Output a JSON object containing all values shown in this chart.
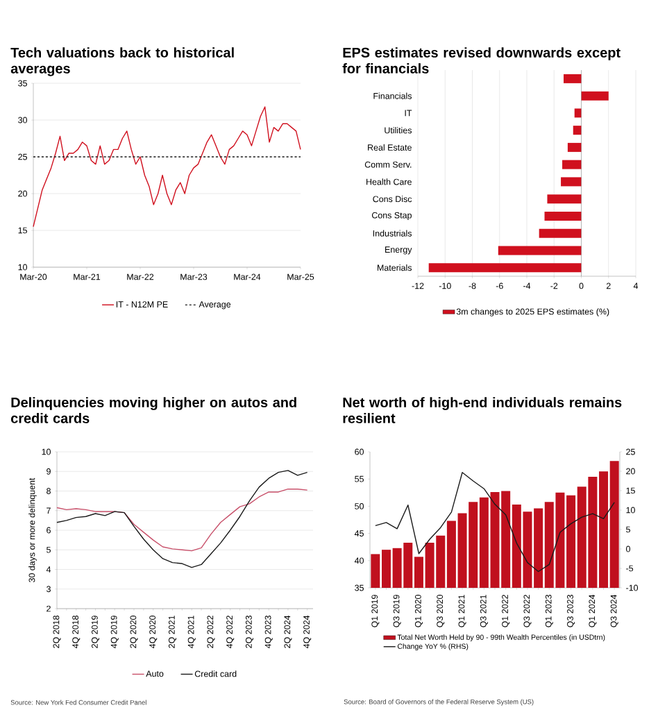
{
  "chart_data": [
    {
      "type": "line",
      "title": "Tech valuations back to historical averages",
      "x": [
        "2020-03",
        "2020-04",
        "2020-05",
        "2020-06",
        "2020-07",
        "2020-08",
        "2020-09",
        "2020-10",
        "2020-11",
        "2020-12",
        "2021-01",
        "2021-02",
        "2021-03",
        "2021-04",
        "2021-05",
        "2021-06",
        "2021-07",
        "2021-08",
        "2021-09",
        "2021-10",
        "2021-11",
        "2021-12",
        "2022-01",
        "2022-02",
        "2022-03",
        "2022-04",
        "2022-05",
        "2022-06",
        "2022-07",
        "2022-08",
        "2022-09",
        "2022-10",
        "2022-11",
        "2022-12",
        "2023-01",
        "2023-02",
        "2023-03",
        "2023-04",
        "2023-05",
        "2023-06",
        "2023-07",
        "2023-08",
        "2023-09",
        "2023-10",
        "2023-11",
        "2023-12",
        "2024-01",
        "2024-02",
        "2024-03",
        "2024-04",
        "2024-05",
        "2024-06",
        "2024-07",
        "2024-08",
        "2024-09",
        "2024-10",
        "2024-11",
        "2024-12",
        "2025-01",
        "2025-02",
        "2025-03"
      ],
      "series": [
        {
          "name": "IT - N12M PE",
          "color": "#d0101e",
          "values": [
            15.5,
            18,
            20.5,
            22,
            23.5,
            25.5,
            27.8,
            24.5,
            25.5,
            25.5,
            26,
            27,
            26.5,
            24.5,
            24,
            26.5,
            24,
            24.5,
            26,
            26,
            27.5,
            28.5,
            26,
            24,
            25,
            22.5,
            21,
            18.5,
            20,
            22.5,
            20,
            18.5,
            20.5,
            21.5,
            20,
            22.5,
            23.5,
            24,
            25.5,
            27,
            28,
            26.5,
            25,
            24,
            26,
            26.5,
            27.5,
            28.5,
            28,
            26.5,
            28.5,
            30.5,
            31.8,
            27,
            29,
            28.5,
            29.5,
            29.5,
            29,
            28.5,
            26
          ]
        }
      ],
      "ref_lines": [
        {
          "axis": "y",
          "value": 25,
          "label": "Average",
          "color": "#1a1a1a",
          "line_style": "dashed"
        }
      ],
      "xlim": [
        "2020-03",
        "2025-03"
      ],
      "xticks": [
        {
          "value": "2020-03",
          "label": "Mar-20"
        },
        {
          "value": "2021-03",
          "label": "Mar-21"
        },
        {
          "value": "2022-03",
          "label": "Mar-22"
        },
        {
          "value": "2023-03",
          "label": "Mar-23"
        },
        {
          "value": "2024-03",
          "label": "Mar-24"
        },
        {
          "value": "2025-03",
          "label": "Mar-25"
        }
      ],
      "ylim": [
        10,
        35
      ],
      "yticks": [
        10,
        15,
        20,
        25,
        30,
        35
      ],
      "grid": "y",
      "legend": "bottom"
    },
    {
      "type": "bar",
      "orientation": "horizontal",
      "title": "EPS estimates revised downwards except for financials",
      "categories": [
        null,
        "Financials",
        "IT",
        "Utilities",
        "Real Estate",
        "Comm Serv.",
        "Health Care",
        "Cons Disc",
        "Cons Stap",
        "Industrials",
        "Energy",
        "Materials"
      ],
      "series": [
        {
          "name": "3m changes to 2025 EPS estimates (%)",
          "color": "#d0101e",
          "values": [
            -1.3,
            2.0,
            -0.5,
            -0.6,
            -1.0,
            -1.4,
            -1.5,
            -2.5,
            -2.7,
            -3.1,
            -6.1,
            -11.2
          ]
        }
      ],
      "xlim": [
        -12,
        4
      ],
      "xticks": [
        -12,
        -10,
        -8,
        -6,
        -4,
        -2,
        0,
        2,
        4
      ],
      "grid": "x",
      "legend": "bottom"
    },
    {
      "type": "line",
      "title": "Delinquencies moving higher on autos and credit cards",
      "ylabel": "30 days or more delinquent",
      "categories": [
        "2Q 2018",
        null,
        "4Q 2018",
        null,
        "2Q 2019",
        null,
        "4Q 2019",
        null,
        "2Q 2020",
        null,
        "4Q 2020",
        null,
        "2Q 2021",
        null,
        "4Q 2021",
        null,
        "2Q 2022",
        null,
        "4Q 2022",
        null,
        "2Q 2023",
        null,
        "4Q 2023",
        null,
        "2Q 2024",
        null,
        "4Q 2024"
      ],
      "series": [
        {
          "name": "Auto",
          "color": "#c8506a",
          "values": [
            7.15,
            7.05,
            7.1,
            7.05,
            6.95,
            6.95,
            6.95,
            6.9,
            6.3,
            5.9,
            5.5,
            5.15,
            5.05,
            5.0,
            4.95,
            5.1,
            5.8,
            6.4,
            6.8,
            7.2,
            7.35,
            7.7,
            7.95,
            7.95,
            8.1,
            8.1,
            8.05
          ]
        },
        {
          "name": "Credit card",
          "color": "#1a1a1a",
          "values": [
            6.4,
            6.5,
            6.65,
            6.7,
            6.85,
            6.75,
            6.95,
            6.9,
            6.2,
            5.55,
            5.0,
            4.55,
            4.35,
            4.3,
            4.1,
            4.25,
            4.8,
            5.35,
            6.0,
            6.7,
            7.5,
            8.2,
            8.65,
            8.95,
            9.05,
            8.8,
            8.95
          ]
        }
      ],
      "ylim": [
        2,
        10
      ],
      "yticks": [
        2,
        3,
        4,
        5,
        6,
        7,
        8,
        9,
        10
      ],
      "grid": "y",
      "legend": "bottom",
      "annotations": [
        "Source: New York Fed Consumer Credit Panel"
      ]
    },
    {
      "type": "bar",
      "title": "Net worth of high-end individuals remains resilient",
      "categories": [
        "Q1 2019",
        null,
        "Q3 2019",
        null,
        "Q1 2020",
        null,
        "Q3 2020",
        null,
        "Q1 2021",
        null,
        "Q3 2021",
        null,
        "Q1 2022",
        null,
        "Q3 2022",
        null,
        "Q1 2023",
        null,
        "Q3 2023",
        null,
        "Q1 2024",
        null,
        "Q3 2024"
      ],
      "series": [
        {
          "name": "Total Net Worth Held by 90 - 99th Wealth Percentiles (in USDtrn)",
          "color": "#c0101e",
          "values": [
            41.2,
            42.0,
            42.3,
            43.3,
            40.7,
            43.3,
            44.6,
            47.3,
            48.7,
            50.8,
            51.6,
            52.6,
            52.8,
            50.3,
            49.0,
            49.6,
            50.8,
            52.5,
            52.0,
            53.6,
            55.4,
            56.4,
            58.3
          ]
        },
        {
          "name": "Change YoY % (RHS)",
          "type": "line",
          "axis": "y2",
          "color": "#1a1a1a",
          "values": [
            6,
            6.8,
            5.2,
            11.3,
            -1.2,
            2.5,
            5.5,
            9.5,
            19.7,
            17.5,
            15.5,
            11.5,
            8.8,
            1.5,
            -3.5,
            -5.8,
            -4,
            4.3,
            6.5,
            8.2,
            9.1,
            7.8,
            12
          ]
        }
      ],
      "ylim": [
        35,
        60
      ],
      "yticks": [
        35,
        40,
        45,
        50,
        55,
        60
      ],
      "y2lim": [
        -10,
        25
      ],
      "y2ticks": [
        -10,
        -5,
        0,
        5,
        10,
        15,
        20,
        25
      ],
      "legend": "bottom",
      "annotations": [
        "Source: Board of Governors of the Federal Reserve System (US)"
      ]
    }
  ]
}
